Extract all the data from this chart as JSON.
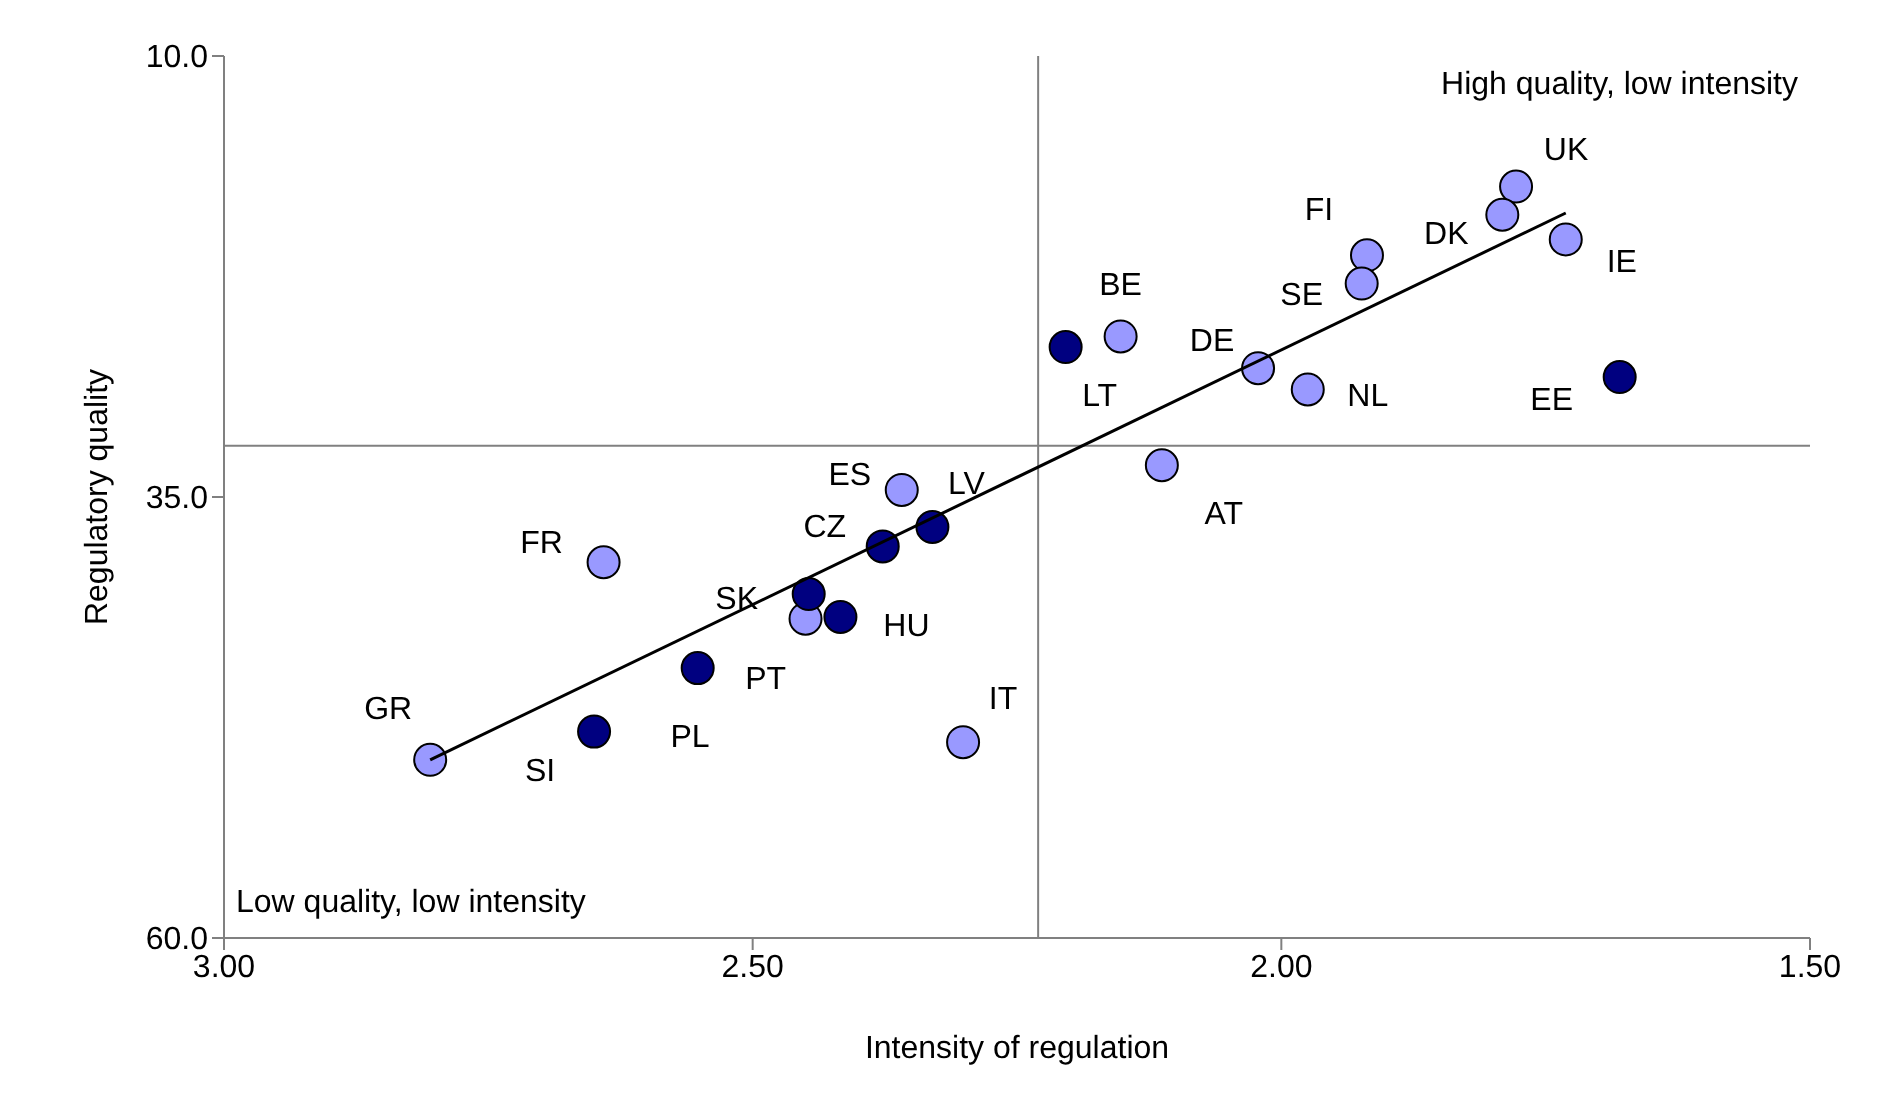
{
  "chart_data": {
    "type": "scatter",
    "xlabel": "Intensity of regulation",
    "ylabel": "Regulatory quality",
    "xlim": [
      3,
      1.5
    ],
    "xticks": [
      {
        "value": 3,
        "label": "3.00"
      },
      {
        "value": 2.5,
        "label": "2.50"
      },
      {
        "value": 2,
        "label": "2.00"
      },
      {
        "value": 1.5,
        "label": "1.50"
      }
    ],
    "ylim": [
      60,
      10
    ],
    "yticks": [
      {
        "value": 60,
        "label": "60.0"
      },
      {
        "value": 35,
        "label": "35.0"
      },
      {
        "value": 10,
        "label": "10.0"
      }
    ],
    "ref_lines": [
      {
        "axis": "x",
        "value": 2.23,
        "color": "#808080"
      },
      {
        "axis": "y",
        "value": 32.1,
        "color": "#808080"
      }
    ],
    "series": [
      {
        "color": "#9999ff",
        "marker": "circle",
        "x": [
          1.778,
          1.791,
          1.919,
          1.924,
          1.731,
          2.152,
          2.022,
          1.975,
          2.113,
          2.359,
          2.641,
          2.45,
          2.805,
          2.301
        ],
        "values": [
          17.4,
          19.0,
          21.3,
          22.9,
          20.4,
          25.9,
          27.7,
          28.9,
          33.2,
          34.6,
          38.7,
          41.9,
          49.9,
          48.9
        ]
      },
      {
        "color": "#000080",
        "marker": "circle",
        "x": [
          2.204,
          1.68,
          2.33,
          2.377,
          2.447,
          2.417,
          2.552,
          2.65
        ],
        "values": [
          26.5,
          28.2,
          36.7,
          37.8,
          40.5,
          41.8,
          44.7,
          48.3
        ]
      },
      {
        "type": "line",
        "color": "#000000",
        "x": [
          2.805,
          1.731
        ],
        "values": [
          49.9,
          18.9
        ]
      }
    ],
    "annotations": [
      "High quality, low intensity",
      "Low quality, low intensity",
      {
        "text": "UK",
        "x": 1.778,
        "y": 17.4
      },
      {
        "text": "DK",
        "x": 1.791,
        "y": 19.0
      },
      {
        "text": "FI",
        "x": 1.919,
        "y": 21.3
      },
      {
        "text": "SE",
        "x": 1.924,
        "y": 22.9
      },
      {
        "text": "IE",
        "x": 1.731,
        "y": 20.4
      },
      {
        "text": "BE",
        "x": 2.152,
        "y": 25.9
      },
      {
        "text": "LT",
        "x": 2.204,
        "y": 26.5
      },
      {
        "text": "DE",
        "x": 2.022,
        "y": 27.7
      },
      {
        "text": "NL",
        "x": 1.975,
        "y": 28.9
      },
      {
        "text": "EE",
        "x": 1.68,
        "y": 28.2
      },
      {
        "text": "AT",
        "x": 2.113,
        "y": 33.2
      },
      {
        "text": "ES",
        "x": 2.359,
        "y": 34.6
      },
      {
        "text": "LV",
        "x": 2.33,
        "y": 36.7
      },
      {
        "text": "CZ",
        "x": 2.377,
        "y": 37.8
      },
      {
        "text": "FR",
        "x": 2.641,
        "y": 38.7
      },
      {
        "text": "SK",
        "x": 2.447,
        "y": 40.5
      },
      {
        "text": "HU",
        "x": 2.417,
        "y": 41.8
      },
      {
        "text": "PT",
        "x": 2.552,
        "y": 44.7
      },
      {
        "text": "PL",
        "x": 2.65,
        "y": 48.3
      },
      {
        "text": "SI",
        "x": 2.65,
        "y": 48.3
      },
      {
        "text": "GR",
        "x": 2.805,
        "y": 49.9
      },
      {
        "text": "IT",
        "x": 2.301,
        "y": 48.9
      }
    ]
  }
}
